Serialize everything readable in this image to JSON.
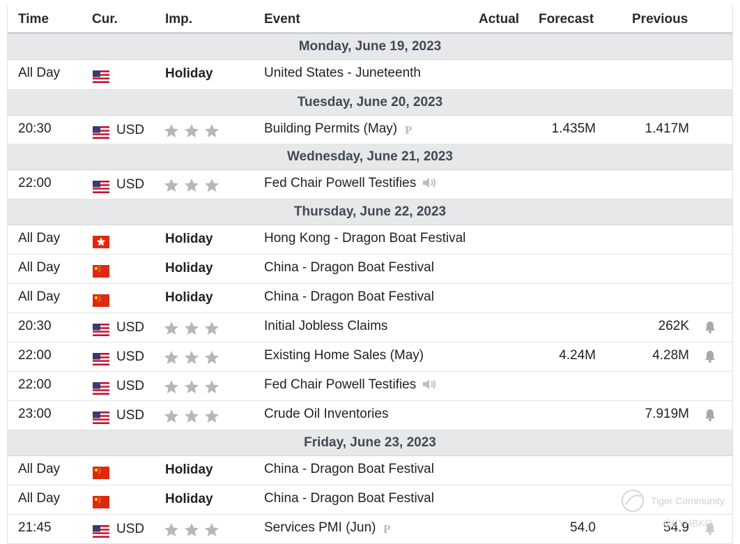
{
  "header": {
    "time": "Time",
    "cur": "Cur.",
    "imp": "Imp.",
    "event": "Event",
    "actual": "Actual",
    "forecast": "Forecast",
    "previous": "Previous"
  },
  "days": [
    "Monday, June 19, 2023",
    "Tuesday, June 20, 2023",
    "Wednesday, June 21, 2023",
    "Thursday, June 22, 2023",
    "Friday, June 23, 2023"
  ],
  "rows": [
    {
      "time": "All Day",
      "flag": "us",
      "cur": "",
      "imp": "Holiday",
      "event": "United States - Juneteenth",
      "forecast": "",
      "previous": ""
    },
    {
      "time": "20:30",
      "flag": "us",
      "cur": "USD",
      "imp": "",
      "event": "Building Permits (May)",
      "forecast": "1.435M",
      "previous": "1.417M"
    },
    {
      "time": "22:00",
      "flag": "us",
      "cur": "USD",
      "imp": "",
      "event": "Fed Chair Powell Testifies",
      "forecast": "",
      "previous": ""
    },
    {
      "time": "All Day",
      "flag": "hk",
      "cur": "",
      "imp": "Holiday",
      "event": "Hong Kong - Dragon Boat Festival",
      "forecast": "",
      "previous": ""
    },
    {
      "time": "All Day",
      "flag": "cn",
      "cur": "",
      "imp": "Holiday",
      "event": "China - Dragon Boat Festival",
      "forecast": "",
      "previous": ""
    },
    {
      "time": "All Day",
      "flag": "cn",
      "cur": "",
      "imp": "Holiday",
      "event": "China - Dragon Boat Festival",
      "forecast": "",
      "previous": ""
    },
    {
      "time": "20:30",
      "flag": "us",
      "cur": "USD",
      "imp": "",
      "event": "Initial Jobless Claims",
      "forecast": "",
      "previous": "262K"
    },
    {
      "time": "22:00",
      "flag": "us",
      "cur": "USD",
      "imp": "",
      "event": "Existing Home Sales (May)",
      "forecast": "4.24M",
      "previous": "4.28M"
    },
    {
      "time": "22:00",
      "flag": "us",
      "cur": "USD",
      "imp": "",
      "event": "Fed Chair Powell Testifies",
      "forecast": "",
      "previous": ""
    },
    {
      "time": "23:00",
      "flag": "us",
      "cur": "USD",
      "imp": "",
      "event": "Crude Oil Inventories",
      "forecast": "",
      "previous": "7.919M"
    },
    {
      "time": "All Day",
      "flag": "cn",
      "cur": "",
      "imp": "Holiday",
      "event": "China - Dragon Boat Festival",
      "forecast": "",
      "previous": ""
    },
    {
      "time": "All Day",
      "flag": "cn",
      "cur": "",
      "imp": "Holiday",
      "event": "China - Dragon Boat Festival",
      "forecast": "",
      "previous": ""
    },
    {
      "time": "21:45",
      "flag": "us",
      "cur": "USD",
      "imp": "",
      "event": "Services PMI (Jun)",
      "forecast": "54.0",
      "previous": "54.9"
    }
  ],
  "importance_stars": 3,
  "watermark": {
    "brand": "Tiger Community",
    "user": "@KYHBKO"
  },
  "colors": {
    "day_bg": "#e6e8ea",
    "star": "#b7b7b7",
    "us_red": "#c8102e",
    "us_blue": "#3c3b6e",
    "cn_red": "#de2910",
    "hk_red": "#de2910"
  },
  "icons": {
    "preliminary": "p-icon",
    "speech": "speaker-icon",
    "alert": "bell-icon",
    "flag_us": "us-flag-icon",
    "flag_cn": "cn-flag-icon",
    "flag_hk": "hk-flag-icon",
    "star": "star-icon"
  }
}
